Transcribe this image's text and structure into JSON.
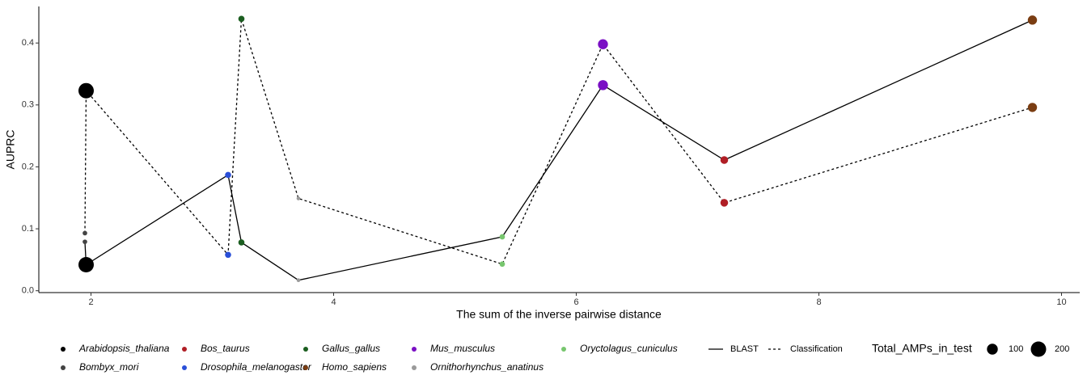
{
  "chart_data": {
    "type": "scatter",
    "xlabel": "The sum of the inverse pairwise distance",
    "ylabel": "AUPRC",
    "groups": [
      {
        "name": "Bombyx_mori",
        "color": "#434343"
      },
      {
        "name": "Arabidopsis_thaliana",
        "color": "#000000"
      },
      {
        "name": "Drosophila_melanogaster",
        "color": "#2a4fd8"
      },
      {
        "name": "Gallus_gallus",
        "color": "#1b5e20"
      },
      {
        "name": "Ornithorhynchus_anatinus",
        "color": "#9a9a9a"
      },
      {
        "name": "Oryctolagus_cuniculus",
        "color": "#77c66e"
      },
      {
        "name": "Mus_musculus",
        "color": "#7a0fc4"
      },
      {
        "name": "Bos_taurus",
        "color": "#b01e25"
      },
      {
        "name": "Homo_sapiens",
        "color": "#7a3d12"
      }
    ],
    "x": [
      1.95,
      1.96,
      3.13,
      3.24,
      3.71,
      5.39,
      6.22,
      7.22,
      9.76
    ],
    "sizes": [
      18,
      200,
      32,
      32,
      12,
      25,
      85,
      50,
      72
    ],
    "series": [
      {
        "name": "BLAST",
        "linestyle": "solid",
        "values": [
          0.079,
          0.042,
          0.187,
          0.078,
          0.017,
          0.087,
          0.332,
          0.211,
          0.437
        ]
      },
      {
        "name": "Classification",
        "linestyle": "dotted",
        "values": [
          0.093,
          0.323,
          0.058,
          0.439,
          0.149,
          0.043,
          0.398,
          0.142,
          0.296
        ]
      }
    ],
    "size_legend": {
      "title": "Total_AMPs_in_test",
      "values": [
        100,
        200
      ]
    },
    "xlim": [
      1.57,
      10.15
    ],
    "xticks": [
      2,
      4,
      6,
      8,
      10
    ],
    "ylim": [
      -0.003,
      0.459
    ],
    "yticks": [
      {
        "value": 0,
        "label": "0.0"
      },
      0.1,
      0.2,
      0.3,
      0.4
    ],
    "grid": false,
    "legend": "bottom"
  }
}
